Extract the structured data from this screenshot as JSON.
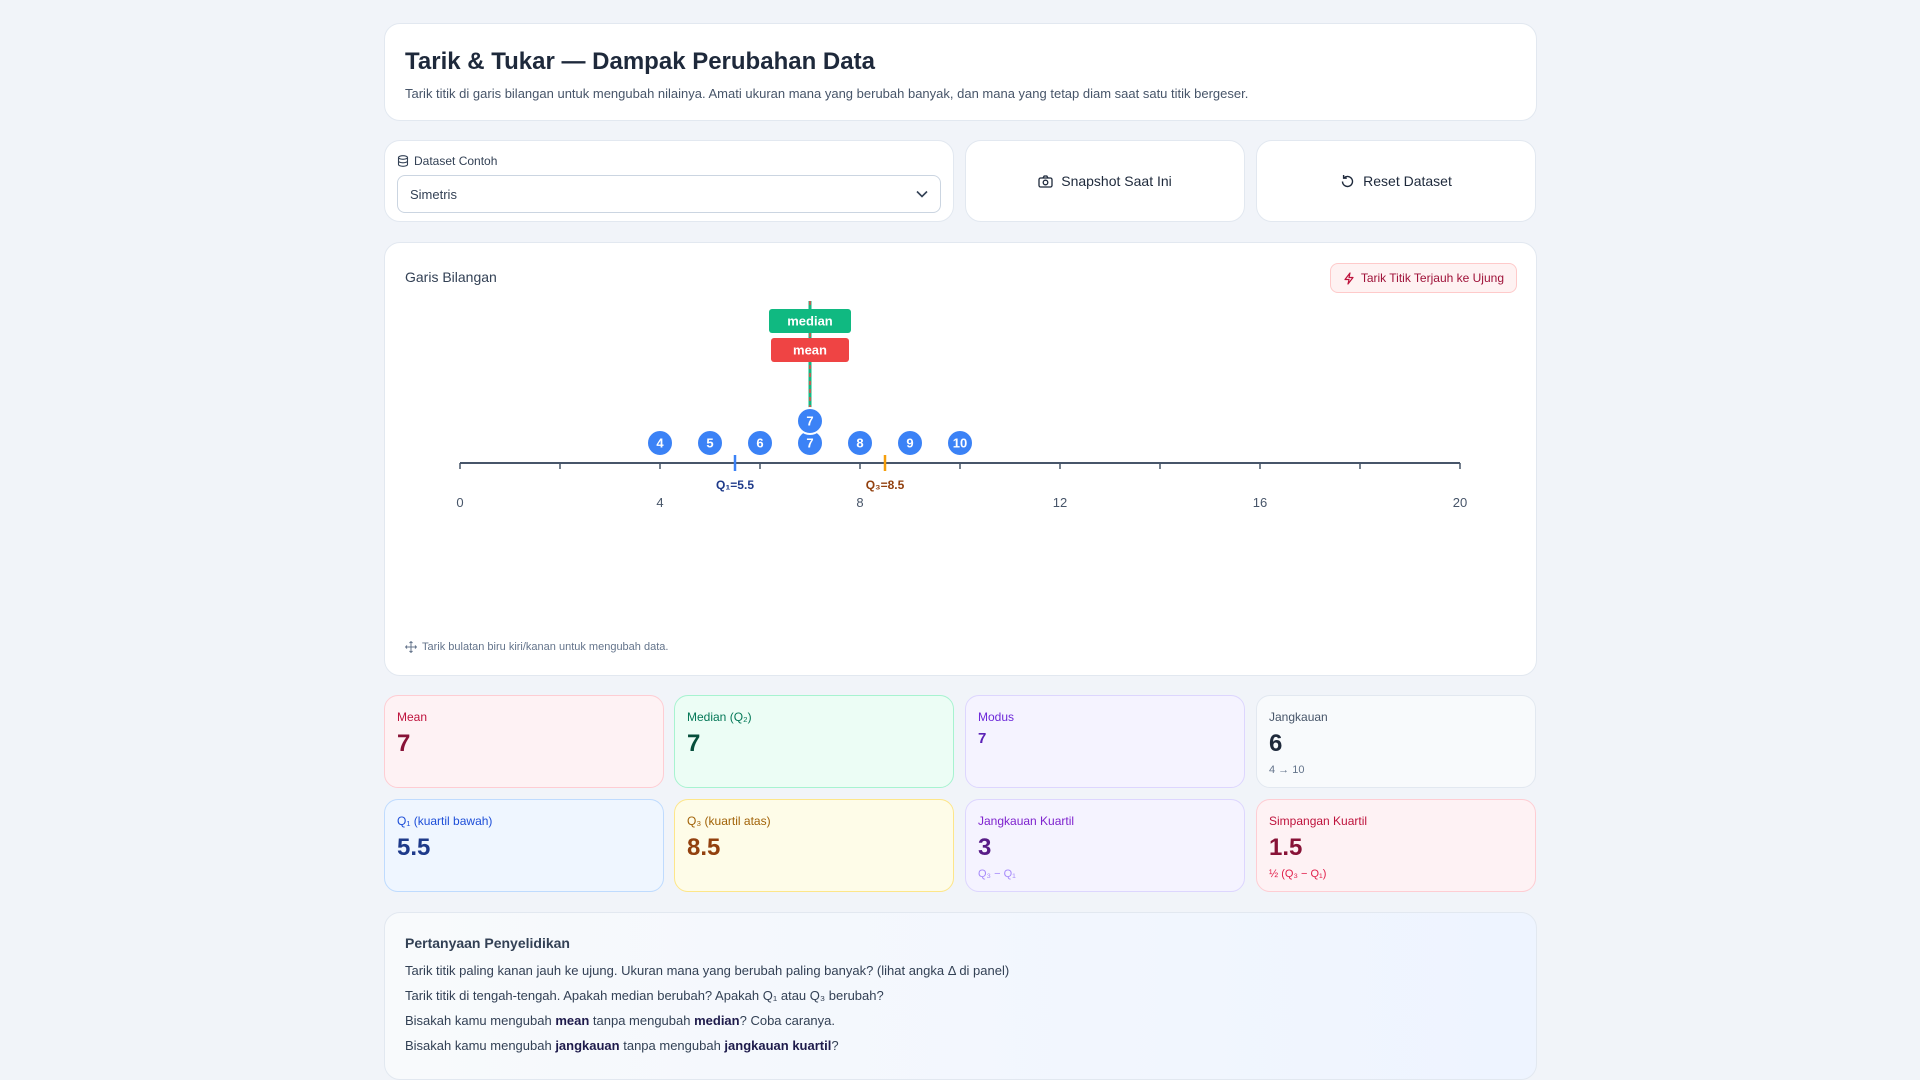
{
  "header": {
    "title": "Tarik & Tukar — Dampak Perubahan Data",
    "subtitle": "Tarik titik di garis bilangan untuk mengubah nilainya. Amati ukuran mana yang berubah banyak, dan mana yang tetap diam saat satu titik bergeser."
  },
  "dataset": {
    "label": "Dataset Contoh",
    "selected": "Simetris",
    "icon": "database-icon"
  },
  "actions": {
    "snapshot_label": "Snapshot Saat Ini",
    "reset_label": "Reset Dataset"
  },
  "number_line": {
    "title": "Garis Bilangan",
    "pull_label": "Tarik Titik Terjauh ke Ujung",
    "hint": "Tarik bulatan biru kiri/kanan untuk mengubah data.",
    "median_tag": "median",
    "mean_tag": "mean",
    "q1_label": "Q₁=5.5",
    "q3_label": "Q₃=8.5",
    "tick_labels": [
      "0",
      "4",
      "8",
      "12",
      "16",
      "20"
    ],
    "axis": {
      "min": 0,
      "max": 20,
      "minor_step": 2,
      "label_step": 4
    },
    "points": [
      4,
      5,
      6,
      7,
      7,
      8,
      9,
      10
    ],
    "mean": 7,
    "median": 7,
    "q1": 5.5,
    "q3": 8.5,
    "colors": {
      "point": "#3b82f6",
      "median": "#10b981",
      "mean": "#ef4444",
      "q1": "#3b82f6",
      "q3": "#f59e0b",
      "axis": "#475569"
    }
  },
  "stats": {
    "mean": {
      "label": "Mean",
      "value": "7"
    },
    "median": {
      "label": "Median (Q₂)",
      "value": "7"
    },
    "mode": {
      "label": "Modus",
      "value": "7"
    },
    "range": {
      "label": "Jangkauan",
      "value": "6",
      "sub": "4 → 10"
    },
    "q1": {
      "label": "Q₁ (kuartil bawah)",
      "value": "5.5"
    },
    "q3": {
      "label": "Q₃ (kuartil atas)",
      "value": "8.5"
    },
    "iqr": {
      "label": "Jangkauan Kuartil",
      "value": "3",
      "sub": "Q₃ − Q₁"
    },
    "qd": {
      "label": "Simpangan Kuartil",
      "value": "1.5",
      "sub": "½ (Q₃ − Q₁)"
    }
  },
  "questions": {
    "title": "Pertanyaan Penyelidikan",
    "q1": "Tarik titik paling kanan jauh ke ujung. Ukuran mana yang berubah paling banyak? (lihat angka Δ di panel)",
    "q2": "Tarik titik di tengah-tengah. Apakah median berubah? Apakah Q₁ atau Q₃ berubah?",
    "q3": {
      "a": "Bisakah kamu mengubah ",
      "b1": "mean",
      "c": " tanpa mengubah ",
      "b2": "median",
      "d": "? Coba caranya."
    },
    "q4": {
      "a": "Bisakah kamu mengubah ",
      "b1": "jangkauan",
      "c": " tanpa mengubah ",
      "b2": "jangkauan kuartil",
      "d": "?"
    }
  }
}
